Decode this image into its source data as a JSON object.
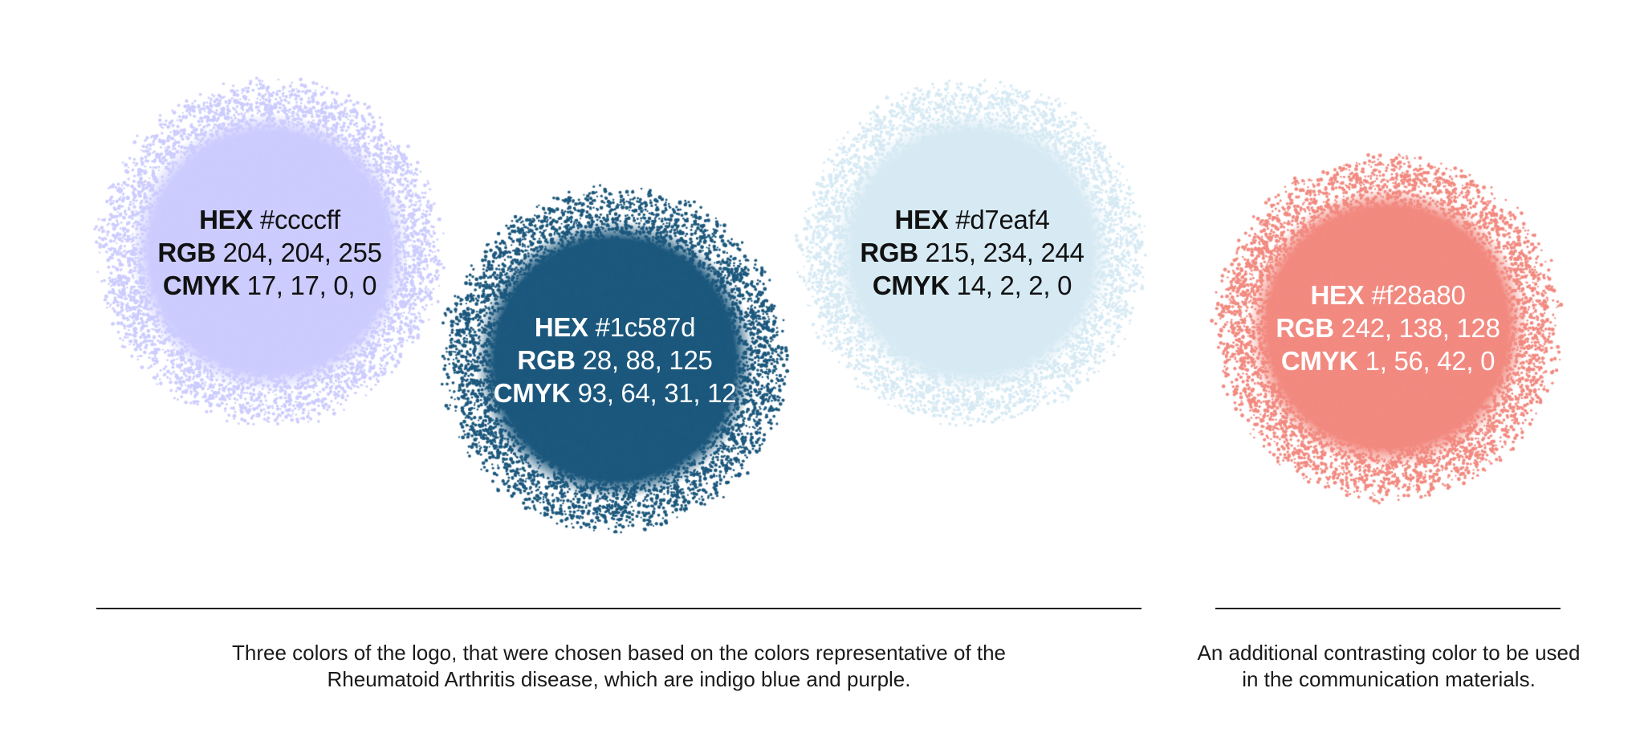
{
  "swatches": [
    {
      "id": "indigo",
      "color": "#ccccff",
      "text_color": "#111111",
      "hex_label": "HEX",
      "hex_value": "#ccccff",
      "rgb_label": "RGB",
      "rgb_value": "204, 204, 255",
      "cmyk_label": "CMYK",
      "cmyk_value": "17, 17, 0, 0"
    },
    {
      "id": "dark-blue",
      "color": "#1c587d",
      "text_color": "#ffffff",
      "hex_label": "HEX",
      "hex_value": "#1c587d",
      "rgb_label": "RGB",
      "rgb_value": "28, 88, 125",
      "cmyk_label": "CMYK",
      "cmyk_value": "93, 64, 31, 12"
    },
    {
      "id": "light-blue",
      "color": "#d7eaf4",
      "text_color": "#111111",
      "hex_label": "HEX",
      "hex_value": "#d7eaf4",
      "rgb_label": "RGB",
      "rgb_value": "215, 234, 244",
      "cmyk_label": "CMYK",
      "cmyk_value": "14, 2, 2, 0"
    },
    {
      "id": "coral",
      "color": "#f28a80",
      "text_color": "#ffffff",
      "hex_label": "HEX",
      "hex_value": "#f28a80",
      "rgb_label": "RGB",
      "rgb_value": "242, 138, 128",
      "cmyk_label": "CMYK",
      "cmyk_value": "1, 56, 42, 0"
    }
  ],
  "captions": {
    "logo_colors": "Three colors of the logo, that were chosen based on the colors representative of the Rheumatoid Arthritis disease, which are indigo blue and purple.",
    "additional_color": "An additional contrasting color to be used in the communication materials."
  }
}
